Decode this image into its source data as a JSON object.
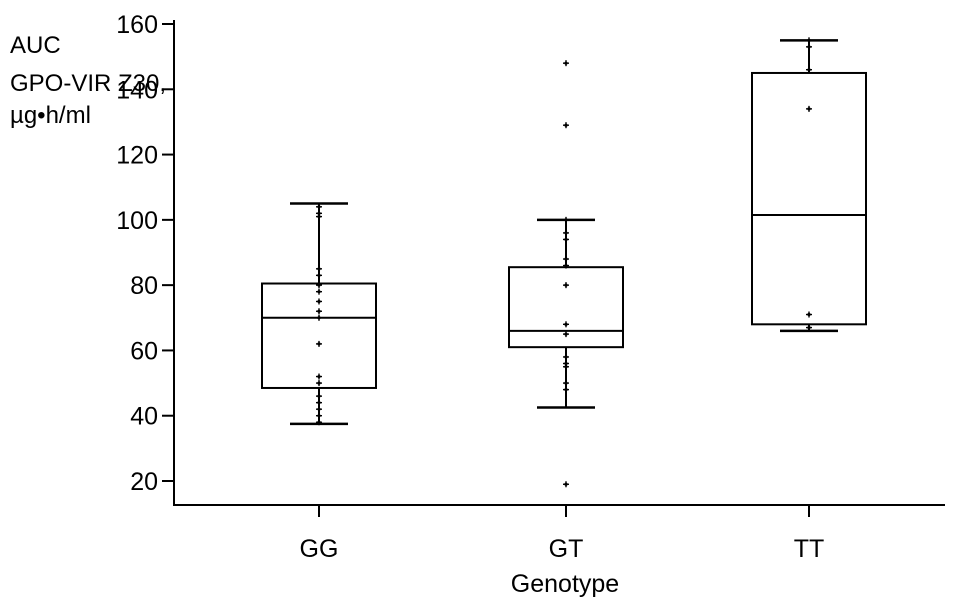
{
  "chart_data": {
    "type": "box",
    "ylabel_lines": [
      "AUC",
      "GPO-VIR Z30,",
      "µg•h/ml"
    ],
    "xlabel": "Genotype",
    "categories": [
      "GG",
      "GT",
      "TT"
    ],
    "yticks": [
      20,
      40,
      60,
      80,
      100,
      120,
      140,
      160
    ],
    "ylim": [
      15,
      160
    ],
    "boxes": [
      {
        "category": "GG",
        "whisker_low": 37.5,
        "q1": 48.5,
        "median": 70,
        "q3": 80.5,
        "whisker_high": 105
      },
      {
        "category": "GT",
        "whisker_low": 42.5,
        "q1": 61,
        "median": 66,
        "q3": 85.5,
        "whisker_high": 100
      },
      {
        "category": "TT",
        "whisker_low": 66,
        "q1": 68,
        "median": 101.5,
        "q3": 145,
        "whisker_high": 155
      }
    ],
    "points": {
      "GG": [
        104,
        102,
        101,
        85,
        83,
        80,
        78,
        75,
        72,
        70,
        62,
        52,
        50,
        46,
        44,
        42,
        40,
        38
      ],
      "GT": [
        148,
        129,
        100,
        96,
        94,
        88,
        86,
        80,
        68,
        65,
        58,
        56,
        55,
        50,
        48,
        19
      ],
      "TT": [
        155,
        153,
        146,
        134,
        71,
        67
      ]
    },
    "grid": false,
    "legend": "none"
  }
}
